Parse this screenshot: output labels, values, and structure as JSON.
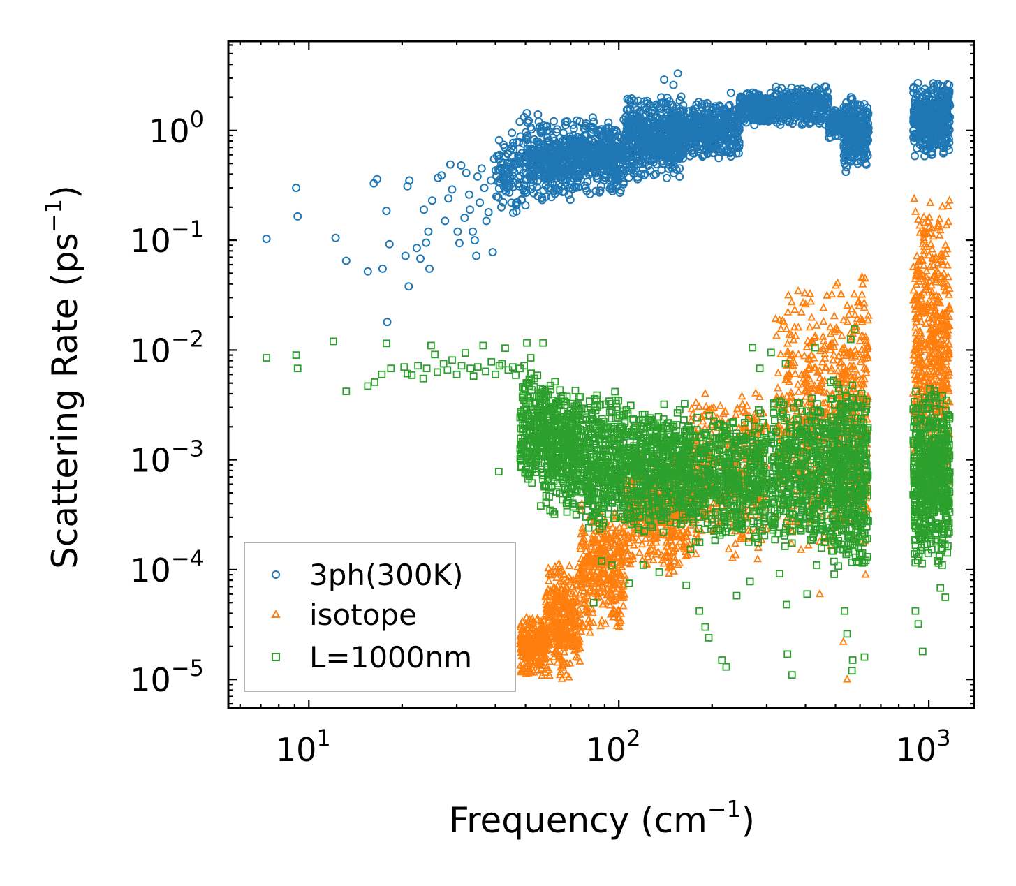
{
  "chart_data": {
    "type": "scatter",
    "title": "",
    "xlabel": "Frequency (cm⁻¹)",
    "xlabel_text": "Frequency (cm",
    "xlabel_sup": "−1",
    "xlabel_close": ")",
    "ylabel": "Scattering Rate (ps⁻¹)",
    "ylabel_text": "Scattering Rate (ps",
    "ylabel_sup": "−1",
    "ylabel_close": ")",
    "xscale": "log",
    "yscale": "log",
    "xlim": [
      5.5,
      1400
    ],
    "ylim": [
      5.5e-06,
      6.5
    ],
    "x_ticks": [
      {
        "value": 10,
        "base": "10",
        "exp": "1"
      },
      {
        "value": 100,
        "base": "10",
        "exp": "2"
      },
      {
        "value": 1000,
        "base": "10",
        "exp": "3"
      }
    ],
    "y_ticks": [
      {
        "value": 1e-05,
        "base": "10",
        "exp": "−5"
      },
      {
        "value": 0.0001,
        "base": "10",
        "exp": "−4"
      },
      {
        "value": 0.001,
        "base": "10",
        "exp": "−3"
      },
      {
        "value": 0.01,
        "base": "10",
        "exp": "−2"
      },
      {
        "value": 0.1,
        "base": "10",
        "exp": "−1"
      },
      {
        "value": 1,
        "base": "10",
        "exp": "0"
      }
    ],
    "legend_position": "lower-left",
    "grid": false,
    "series": [
      {
        "name": "3ph(300K)",
        "marker": "circle",
        "color": "#1f77b4",
        "points": [
          [
            7.3,
            0.103
          ],
          [
            9.1,
            0.3
          ],
          [
            9.2,
            0.165
          ],
          [
            12.2,
            0.105
          ],
          [
            13.2,
            0.065
          ],
          [
            16.2,
            0.33
          ],
          [
            16.6,
            0.36
          ],
          [
            15.5,
            0.052
          ],
          [
            17.3,
            0.055
          ],
          [
            17.8,
            0.185
          ],
          [
            18.2,
            0.092
          ],
          [
            17.9,
            0.018
          ],
          [
            20.5,
            0.072
          ],
          [
            20.8,
            0.31
          ],
          [
            21.1,
            0.35
          ],
          [
            21.0,
            0.038
          ],
          [
            22.3,
            0.085
          ],
          [
            22.9,
            0.068
          ],
          [
            23.5,
            0.19
          ],
          [
            23.9,
            0.095
          ],
          [
            24.5,
            0.055
          ],
          [
            24.3,
            0.12
          ],
          [
            25.0,
            0.23
          ],
          [
            26.1,
            0.37
          ],
          [
            26.8,
            0.39
          ],
          [
            27.5,
            0.15
          ],
          [
            28.2,
            0.24
          ],
          [
            28.6,
            0.49
          ],
          [
            29.0,
            0.29
          ],
          [
            30.2,
            0.12
          ],
          [
            30.6,
            0.094
          ],
          [
            31.0,
            0.48
          ],
          [
            31.8,
            0.16
          ],
          [
            32.2,
            0.41
          ],
          [
            32.9,
            0.26
          ],
          [
            33.1,
            0.19
          ],
          [
            33.8,
            0.12
          ],
          [
            34.3,
            0.1
          ],
          [
            34.7,
            0.072
          ],
          [
            35.0,
            0.38
          ],
          [
            35.6,
            0.22
          ],
          [
            36.1,
            0.45
          ],
          [
            36.8,
            0.3
          ],
          [
            37.4,
            0.15
          ],
          [
            38.0,
            0.18
          ],
          [
            38.7,
            0.35
          ],
          [
            39.2,
            0.078
          ],
          [
            39.6,
            0.55
          ],
          [
            40.3,
            0.25
          ],
          [
            41.2,
            0.6
          ],
          [
            41.8,
            0.2
          ],
          [
            42.5,
            0.74
          ],
          [
            43.1,
            0.42
          ],
          [
            43.8,
            0.3
          ],
          [
            44.5,
            0.65
          ],
          [
            45.2,
            0.95
          ],
          [
            46.1,
            0.52
          ],
          [
            46.8,
            0.78
          ],
          [
            47.9,
            1.2
          ],
          [
            48.6,
            0.62
          ],
          [
            49.5,
            1.32
          ],
          [
            50.2,
            0.85
          ]
        ],
        "bands": [
          {
            "x0": 40,
            "x1": 50,
            "y0": 0.15,
            "y1": 1.0,
            "n": 90
          },
          {
            "x0": 50,
            "x1": 70,
            "y0": 0.22,
            "y1": 1.45,
            "n": 320
          },
          {
            "x0": 70,
            "x1": 105,
            "y0": 0.25,
            "y1": 1.35,
            "n": 420
          },
          {
            "x0": 105,
            "x1": 160,
            "y0": 0.35,
            "y1": 2.2,
            "n": 520
          },
          {
            "x0": 160,
            "x1": 245,
            "y0": 0.55,
            "y1": 1.9,
            "n": 420
          },
          {
            "x0": 245,
            "x1": 320,
            "y0": 1.1,
            "y1": 2.3,
            "n": 220
          },
          {
            "x0": 320,
            "x1": 475,
            "y0": 1.05,
            "y1": 2.6,
            "n": 300
          },
          {
            "x0": 475,
            "x1": 530,
            "y0": 0.85,
            "y1": 1.6,
            "n": 100
          },
          {
            "x0": 530,
            "x1": 640,
            "y0": 0.45,
            "y1": 2.1,
            "n": 280
          },
          {
            "x0": 890,
            "x1": 1170,
            "y0": 0.55,
            "y1": 2.8,
            "n": 480
          }
        ],
        "extra": [
          [
            155,
            3.3
          ],
          [
            140,
            2.9
          ],
          [
            150,
            2.6
          ],
          [
            230,
            2.2
          ],
          [
            115,
            0.36
          ],
          [
            118,
            0.4
          ],
          [
            210,
            0.56
          ],
          [
            540,
            0.42
          ]
        ]
      },
      {
        "name": "isotope",
        "marker": "triangle",
        "color": "#ff7f0e",
        "points": [],
        "bands": [
          {
            "x0": 48,
            "x1": 58,
            "y0": 1e-05,
            "y1": 4e-05,
            "n": 260
          },
          {
            "x0": 58,
            "x1": 75,
            "y0": 1e-05,
            "y1": 0.00012,
            "n": 340
          },
          {
            "x0": 75,
            "x1": 105,
            "y0": 2.5e-05,
            "y1": 0.0004,
            "n": 360
          },
          {
            "x0": 105,
            "x1": 170,
            "y0": 8e-05,
            "y1": 0.0012,
            "n": 420
          },
          {
            "x0": 170,
            "x1": 300,
            "y0": 0.00012,
            "y1": 0.0045,
            "n": 380
          },
          {
            "x0": 320,
            "x1": 470,
            "y0": 0.00012,
            "y1": 0.045,
            "n": 340
          },
          {
            "x0": 480,
            "x1": 640,
            "y0": 0.0001,
            "y1": 0.07,
            "n": 380
          },
          {
            "x0": 890,
            "x1": 1170,
            "y0": 0.0004,
            "y1": 0.32,
            "n": 520
          }
        ],
        "extra": [
          [
            530,
            2.2e-05
          ],
          [
            545,
            1e-05
          ],
          [
            625,
            9e-05
          ],
          [
            445,
            6e-05
          ]
        ]
      },
      {
        "name": "L=1000nm",
        "marker": "square",
        "color": "#2ca02c",
        "points": [
          [
            7.3,
            0.0085
          ],
          [
            9.1,
            0.009
          ],
          [
            9.2,
            0.0068
          ],
          [
            12.0,
            0.012
          ],
          [
            13.2,
            0.0042
          ],
          [
            15.5,
            0.0047
          ],
          [
            16.3,
            0.0051
          ],
          [
            17.2,
            0.006
          ],
          [
            17.8,
            0.0115
          ],
          [
            18.4,
            0.0068
          ],
          [
            20.3,
            0.007
          ],
          [
            20.8,
            0.0061
          ],
          [
            21.5,
            0.0059
          ],
          [
            22.5,
            0.0072
          ],
          [
            23.4,
            0.0055
          ],
          [
            24.0,
            0.0068
          ],
          [
            24.8,
            0.011
          ],
          [
            25.5,
            0.0091
          ],
          [
            26.0,
            0.0063
          ],
          [
            27.2,
            0.0075
          ],
          [
            28.0,
            0.0066
          ],
          [
            29.0,
            0.0081
          ],
          [
            30.0,
            0.006
          ],
          [
            31.1,
            0.0072
          ],
          [
            32.0,
            0.0094
          ],
          [
            33.2,
            0.0068
          ],
          [
            34.0,
            0.0058
          ],
          [
            35.1,
            0.007
          ],
          [
            36.5,
            0.011
          ],
          [
            37.2,
            0.0064
          ],
          [
            38.8,
            0.0078
          ],
          [
            40.0,
            0.006
          ],
          [
            41.2,
            0.0072
          ],
          [
            42.0,
            0.0075
          ],
          [
            43.0,
            0.0104
          ],
          [
            44.0,
            0.0066
          ],
          [
            45.5,
            0.007
          ],
          [
            46.5,
            0.0059
          ],
          [
            48.0,
            0.0068
          ],
          [
            49.5,
            0.0072
          ],
          [
            41.0,
            0.00078
          ],
          [
            50.5,
            0.0116
          ],
          [
            57.0,
            0.0116
          ],
          [
            52.0,
            0.0085
          ]
        ],
        "bands": [
          {
            "x0": 48,
            "x1": 58,
            "y0": 0.0005,
            "y1": 0.007,
            "n": 220
          },
          {
            "x0": 58,
            "x1": 75,
            "y0": 0.0003,
            "y1": 0.0055,
            "n": 380
          },
          {
            "x0": 75,
            "x1": 110,
            "y0": 0.0002,
            "y1": 0.0045,
            "n": 420
          },
          {
            "x0": 110,
            "x1": 170,
            "y0": 0.0002,
            "y1": 0.0035,
            "n": 520
          },
          {
            "x0": 170,
            "x1": 300,
            "y0": 0.00015,
            "y1": 0.003,
            "n": 520
          },
          {
            "x0": 310,
            "x1": 470,
            "y0": 0.00015,
            "y1": 0.004,
            "n": 420
          },
          {
            "x0": 480,
            "x1": 640,
            "y0": 9e-05,
            "y1": 0.006,
            "n": 460
          },
          {
            "x0": 890,
            "x1": 1170,
            "y0": 0.0001,
            "y1": 0.005,
            "n": 560
          }
        ],
        "extra": [
          [
            56,
            0.00038
          ],
          [
            62,
            0.00032
          ],
          [
            80,
            0.00024
          ],
          [
            83,
            5e-05
          ],
          [
            88,
            0.00012
          ],
          [
            95,
            0.00011
          ],
          [
            108,
            7.5e-05
          ],
          [
            120,
            0.00011
          ],
          [
            135,
            9.5e-05
          ],
          [
            165,
            7.2e-05
          ],
          [
            182,
            4.2e-05
          ],
          [
            190,
            3e-05
          ],
          [
            195,
            2.4e-05
          ],
          [
            215,
            1.5e-05
          ],
          [
            222,
            1.3e-05
          ],
          [
            240,
            5.8e-05
          ],
          [
            265,
            7.8e-05
          ],
          [
            330,
            9.2e-05
          ],
          [
            348,
            4.8e-05
          ],
          [
            350,
            1.7e-05
          ],
          [
            362,
            1.1e-05
          ],
          [
            405,
            6e-05
          ],
          [
            435,
            0.00011
          ],
          [
            535,
            4.2e-05
          ],
          [
            545,
            2.6e-05
          ],
          [
            568,
            1.5e-05
          ],
          [
            565,
            1.2e-05
          ],
          [
            620,
            1.6e-05
          ],
          [
            905,
            4.2e-05
          ],
          [
            925,
            3.2e-05
          ],
          [
            955,
            1.8e-05
          ],
          [
            1090,
            6.8e-05
          ],
          [
            1130,
            5.6e-05
          ],
          [
            1105,
            0.00011
          ],
          [
            270,
            0.0105
          ],
          [
            310,
            0.0095
          ],
          [
            430,
            0.0105
          ],
          [
            560,
            0.0125
          ],
          [
            575,
            0.0155
          ],
          [
            345,
            0.0075
          ],
          [
            285,
            0.0068
          ]
        ]
      }
    ]
  }
}
